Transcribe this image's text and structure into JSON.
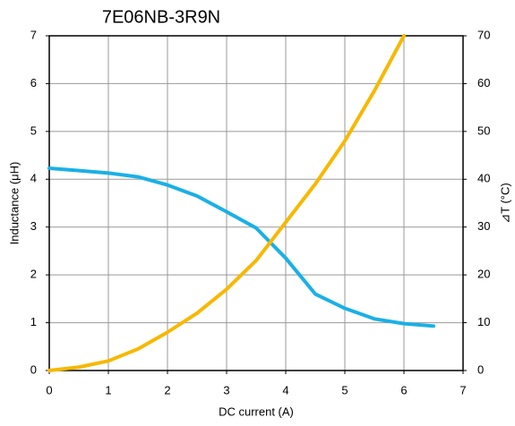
{
  "chart_data": {
    "type": "line",
    "title": "7E06NB-3R9N",
    "x_label": "DC current (A)",
    "y_label": "Inductance (μH)",
    "y2_label": "⊿T (°C)",
    "xlim": [
      0,
      7
    ],
    "xticks": [
      0,
      1,
      2,
      3,
      4,
      5,
      6,
      7
    ],
    "ylim": [
      0,
      7
    ],
    "yticks": [
      0,
      1,
      2,
      3,
      4,
      5,
      6,
      7
    ],
    "y2lim": [
      0,
      70
    ],
    "y2ticks": [
      0,
      10,
      20,
      30,
      40,
      50,
      60,
      70
    ],
    "grid": true,
    "series": [
      {
        "color": "#1ab0e6",
        "x": [
          0,
          0.5,
          1,
          1.5,
          2,
          2.5,
          3,
          3.5,
          4,
          4.5,
          5,
          5.5,
          6,
          6.5
        ],
        "values": [
          4.23,
          4.18,
          4.13,
          4.05,
          3.88,
          3.65,
          3.32,
          2.98,
          2.35,
          1.6,
          1.3,
          1.08,
          0.98,
          0.93
        ]
      },
      {
        "color": "#f7b800",
        "axis": "y2",
        "x": [
          0,
          0.5,
          1,
          1.5,
          2,
          2.5,
          3,
          3.5,
          4,
          4.5,
          5,
          5.5,
          6
        ],
        "values": [
          0,
          0.7,
          2,
          4.5,
          8,
          12,
          17,
          23,
          31,
          39,
          48,
          58.5,
          70
        ]
      }
    ]
  }
}
